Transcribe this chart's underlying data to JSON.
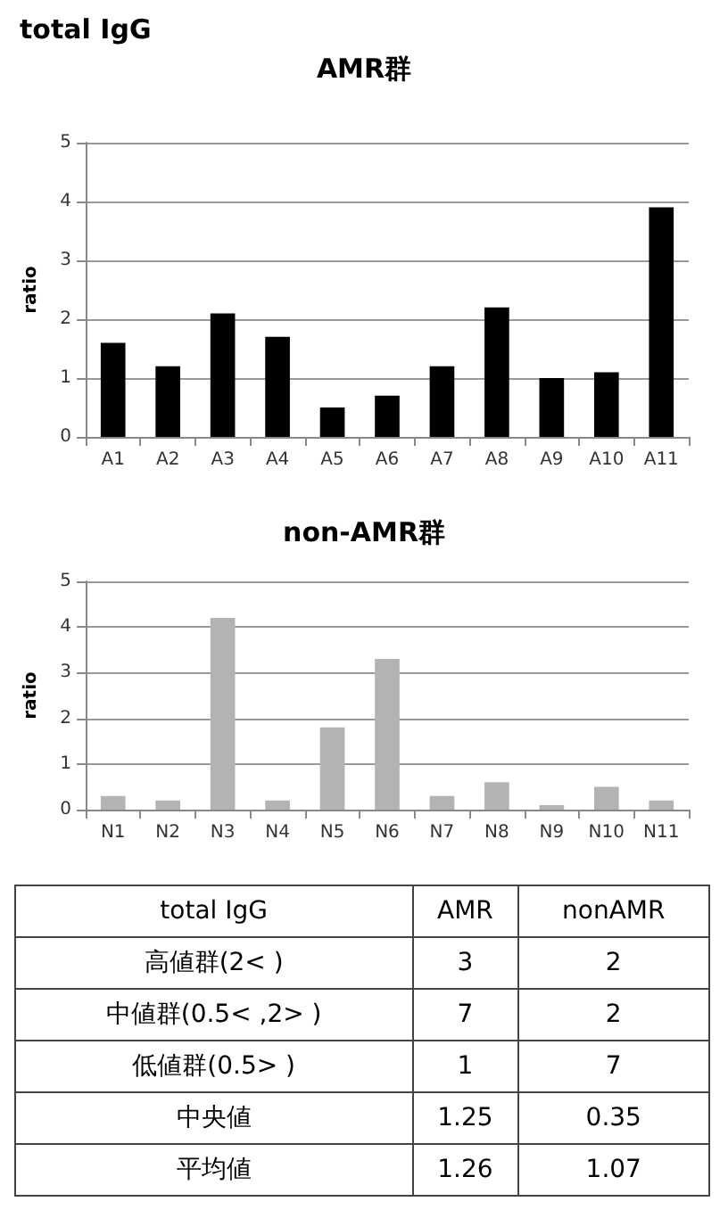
{
  "chart_data": [
    {
      "type": "bar",
      "title": "total IgG",
      "subtitle": "AMR群",
      "ylabel": "ratio",
      "categories": [
        "A1",
        "A2",
        "A3",
        "A4",
        "A5",
        "A6",
        "A7",
        "A8",
        "A9",
        "A10",
        "A11"
      ],
      "series": [
        {
          "color": "#000000",
          "values": [
            1.6,
            1.2,
            2.1,
            1.7,
            0.5,
            0.7,
            1.2,
            2.2,
            1.0,
            1.1,
            3.9
          ]
        }
      ],
      "ylim": [
        0,
        5
      ],
      "yticks": [
        0,
        1,
        2,
        3,
        4,
        5
      ],
      "grid": "y"
    },
    {
      "type": "bar",
      "title": "non-AMR群",
      "ylabel": "ratio",
      "categories": [
        "N1",
        "N2",
        "N3",
        "N4",
        "N5",
        "N6",
        "N7",
        "N8",
        "N9",
        "N10",
        "N11"
      ],
      "series": [
        {
          "color": "#b3b3b3",
          "values": [
            0.3,
            0.2,
            4.2,
            0.2,
            1.8,
            3.3,
            0.3,
            0.6,
            0.1,
            0.5,
            0.2
          ]
        }
      ],
      "ylim": [
        0,
        5
      ],
      "yticks": [
        0,
        1,
        2,
        3,
        4,
        5
      ],
      "grid": "y"
    },
    {
      "type": "other",
      "title": "total IgG",
      "categories": [
        "AMR",
        "nonAMR"
      ],
      "y_categories": [
        "高値群(2< )",
        "中値群(0.5< ,2> )",
        "低値群(0.5> )",
        "中央値",
        "平均値"
      ],
      "cell_labels": [
        [
          "3",
          "2"
        ],
        [
          "7",
          "2"
        ],
        [
          "1",
          "7"
        ],
        [
          "1.25",
          "0.35"
        ],
        [
          "1.26",
          "1.07"
        ]
      ]
    }
  ]
}
